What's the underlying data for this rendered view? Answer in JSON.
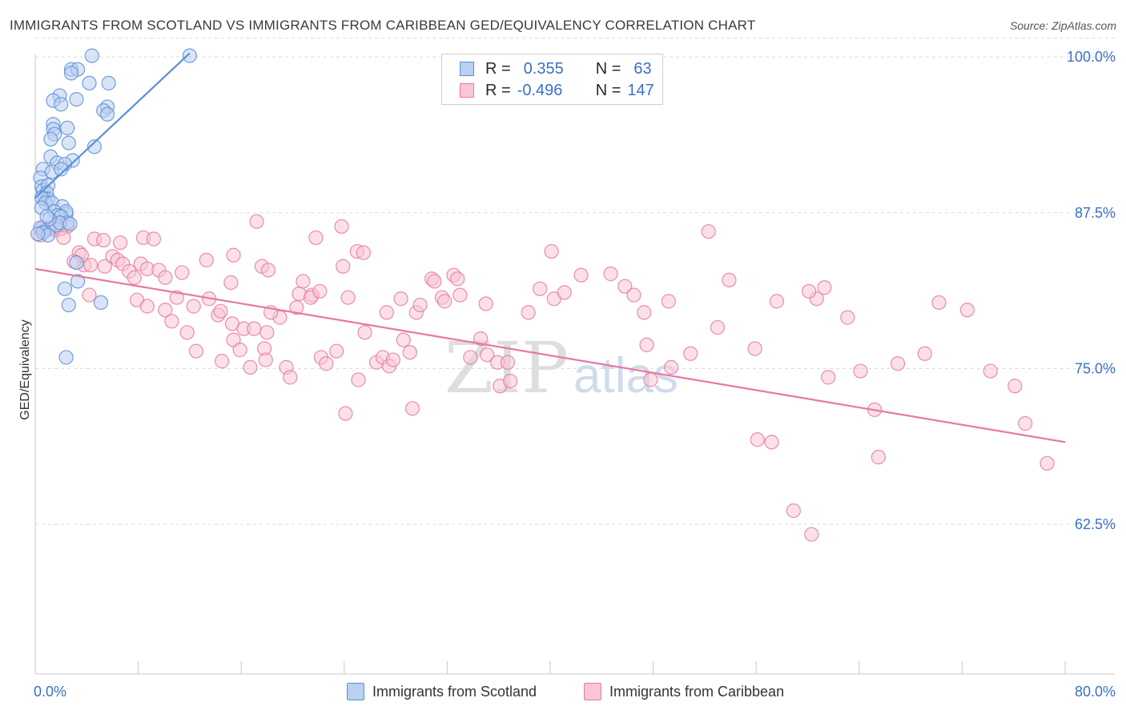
{
  "header": {
    "title": "IMMIGRANTS FROM SCOTLAND VS IMMIGRANTS FROM CARIBBEAN GED/EQUIVALENCY CORRELATION CHART",
    "source": "Source: ZipAtlas.com"
  },
  "stats_legend": {
    "rows": [
      {
        "r_label": "R =",
        "r_value": "0.355",
        "n_label": "N =",
        "n_value": "63",
        "color": "#5b8fd6",
        "fill": "#b9d0f0"
      },
      {
        "r_label": "R =",
        "r_value": "-0.496",
        "n_label": "N =",
        "n_value": "147",
        "color": "#e8799e",
        "fill": "#f8c6d6"
      }
    ]
  },
  "watermark": {
    "zip": "ZIP",
    "atlas": "atlas"
  },
  "chart_data": {
    "type": "scatter",
    "xlabel": "",
    "ylabel": "GED/Equivalency",
    "xlim": [
      0,
      80
    ],
    "ylim": [
      50.5,
      102
    ],
    "x_tick_labels": [
      "0.0%",
      "80.0%"
    ],
    "y_ticks": [
      62.5,
      75.0,
      87.5,
      100.0
    ],
    "y_tick_labels": [
      "62.5%",
      "75.0%",
      "87.5%",
      "100.0%"
    ],
    "x_minor_ticks": [
      0,
      8,
      16,
      24,
      32,
      40,
      48,
      56,
      64,
      72,
      80
    ],
    "grid": "horizontal dashed",
    "legend": "bottom-center",
    "series": [
      {
        "name": "Immigrants from Scotland",
        "color": "#5b8fd6",
        "fill": "#b9d0f0",
        "trend": {
          "x": [
            0.0,
            12.0
          ],
          "y": [
            88.7,
            100.3
          ]
        },
        "points": [
          [
            4.4,
            100.1
          ],
          [
            12.0,
            100.1
          ],
          [
            2.8,
            99.0
          ],
          [
            3.3,
            99.0
          ],
          [
            2.8,
            98.7
          ],
          [
            5.7,
            97.9
          ],
          [
            4.2,
            97.9
          ],
          [
            1.9,
            96.9
          ],
          [
            1.4,
            96.5
          ],
          [
            3.2,
            96.6
          ],
          [
            5.6,
            96.0
          ],
          [
            2.0,
            96.2
          ],
          [
            5.3,
            95.7
          ],
          [
            5.6,
            95.4
          ],
          [
            1.4,
            94.6
          ],
          [
            2.5,
            94.3
          ],
          [
            1.4,
            94.2
          ],
          [
            1.5,
            93.8
          ],
          [
            1.2,
            93.4
          ],
          [
            4.6,
            92.8
          ],
          [
            2.6,
            93.1
          ],
          [
            1.2,
            92.0
          ],
          [
            2.9,
            91.7
          ],
          [
            1.7,
            91.5
          ],
          [
            2.3,
            91.4
          ],
          [
            0.6,
            91.0
          ],
          [
            1.3,
            90.8
          ],
          [
            2.0,
            91.0
          ],
          [
            0.4,
            90.3
          ],
          [
            0.5,
            89.6
          ],
          [
            0.6,
            89.3
          ],
          [
            1.0,
            89.7
          ],
          [
            0.9,
            89.1
          ],
          [
            0.7,
            88.6
          ],
          [
            1.0,
            88.6
          ],
          [
            0.5,
            88.7
          ],
          [
            0.8,
            88.3
          ],
          [
            1.3,
            88.3
          ],
          [
            2.1,
            88.0
          ],
          [
            0.5,
            87.9
          ],
          [
            1.5,
            87.6
          ],
          [
            2.4,
            87.4
          ],
          [
            2.4,
            87.6
          ],
          [
            1.8,
            87.3
          ],
          [
            2.0,
            87.2
          ],
          [
            2.5,
            86.7
          ],
          [
            1.1,
            86.3
          ],
          [
            0.7,
            86.0
          ],
          [
            3.2,
            83.5
          ],
          [
            3.3,
            82.0
          ],
          [
            2.3,
            81.4
          ],
          [
            5.1,
            80.3
          ],
          [
            2.6,
            80.1
          ],
          [
            0.4,
            86.3
          ],
          [
            1.6,
            86.5
          ],
          [
            1.9,
            86.7
          ],
          [
            2.7,
            86.6
          ],
          [
            1.1,
            87.0
          ],
          [
            0.9,
            87.2
          ],
          [
            0.6,
            85.9
          ],
          [
            1.0,
            85.7
          ],
          [
            2.4,
            75.9
          ],
          [
            0.2,
            85.8
          ]
        ]
      },
      {
        "name": "Immigrants from Caribbean",
        "color": "#e8799e",
        "fill": "#f8c6d6",
        "trend": {
          "x": [
            0.0,
            80.0
          ],
          "y": [
            83.0,
            69.1
          ]
        },
        "points": [
          [
            0.4,
            85.7
          ],
          [
            0.6,
            86.3
          ],
          [
            0.8,
            86.2
          ],
          [
            1.2,
            86.2
          ],
          [
            1.6,
            86.1
          ],
          [
            2.0,
            86.2
          ],
          [
            2.5,
            86.4
          ],
          [
            2.2,
            85.5
          ],
          [
            3.4,
            84.3
          ],
          [
            4.6,
            85.4
          ],
          [
            3.8,
            83.3
          ],
          [
            4.3,
            83.3
          ],
          [
            3.6,
            84.1
          ],
          [
            5.3,
            85.3
          ],
          [
            5.4,
            83.2
          ],
          [
            6.0,
            84.0
          ],
          [
            6.4,
            83.7
          ],
          [
            6.6,
            85.1
          ],
          [
            6.8,
            83.4
          ],
          [
            7.3,
            82.8
          ],
          [
            7.7,
            82.3
          ],
          [
            8.2,
            83.4
          ],
          [
            8.4,
            85.5
          ],
          [
            8.7,
            83.0
          ],
          [
            9.6,
            82.9
          ],
          [
            10.1,
            82.3
          ],
          [
            3.0,
            83.6
          ],
          [
            4.2,
            80.9
          ],
          [
            7.9,
            80.5
          ],
          [
            8.7,
            80.0
          ],
          [
            10.1,
            79.7
          ],
          [
            11.0,
            80.7
          ],
          [
            10.6,
            78.8
          ],
          [
            11.4,
            82.7
          ],
          [
            12.3,
            80.0
          ],
          [
            11.8,
            77.9
          ],
          [
            12.5,
            76.4
          ],
          [
            13.3,
            83.7
          ],
          [
            13.5,
            80.6
          ],
          [
            14.2,
            79.3
          ],
          [
            14.4,
            79.6
          ],
          [
            15.2,
            81.9
          ],
          [
            15.3,
            78.6
          ],
          [
            15.4,
            77.3
          ],
          [
            14.5,
            75.6
          ],
          [
            15.9,
            76.5
          ],
          [
            16.2,
            78.2
          ],
          [
            17.0,
            78.2
          ],
          [
            17.8,
            76.6
          ],
          [
            17.6,
            83.2
          ],
          [
            18.1,
            82.9
          ],
          [
            19.0,
            79.1
          ],
          [
            18.0,
            77.9
          ],
          [
            17.9,
            75.7
          ],
          [
            19.5,
            75.1
          ],
          [
            19.8,
            74.3
          ],
          [
            20.3,
            79.9
          ],
          [
            20.5,
            81.0
          ],
          [
            20.8,
            82.0
          ],
          [
            21.5,
            80.9
          ],
          [
            21.4,
            80.7
          ],
          [
            22.1,
            81.2
          ],
          [
            22.2,
            75.9
          ],
          [
            22.6,
            75.4
          ],
          [
            23.4,
            76.4
          ],
          [
            23.9,
            83.2
          ],
          [
            23.8,
            86.4
          ],
          [
            24.1,
            71.4
          ],
          [
            24.3,
            80.7
          ],
          [
            25.0,
            84.4
          ],
          [
            25.5,
            84.3
          ],
          [
            25.6,
            77.9
          ],
          [
            25.1,
            74.1
          ],
          [
            26.5,
            75.5
          ],
          [
            27.0,
            75.9
          ],
          [
            27.3,
            79.5
          ],
          [
            27.5,
            75.2
          ],
          [
            27.8,
            75.7
          ],
          [
            28.4,
            80.6
          ],
          [
            28.6,
            77.3
          ],
          [
            29.1,
            76.3
          ],
          [
            29.3,
            71.8
          ],
          [
            29.6,
            79.5
          ],
          [
            29.9,
            80.1
          ],
          [
            30.8,
            82.2
          ],
          [
            31.0,
            82.0
          ],
          [
            31.6,
            80.7
          ],
          [
            31.8,
            80.4
          ],
          [
            32.5,
            82.5
          ],
          [
            32.8,
            82.2
          ],
          [
            33.0,
            80.9
          ],
          [
            33.8,
            75.9
          ],
          [
            34.6,
            77.4
          ],
          [
            35.1,
            76.1
          ],
          [
            35.0,
            80.2
          ],
          [
            35.9,
            75.5
          ],
          [
            36.1,
            73.6
          ],
          [
            36.7,
            75.5
          ],
          [
            36.9,
            74.0
          ],
          [
            38.3,
            79.5
          ],
          [
            39.2,
            81.4
          ],
          [
            40.1,
            84.4
          ],
          [
            40.3,
            80.6
          ],
          [
            41.1,
            81.1
          ],
          [
            42.4,
            82.5
          ],
          [
            44.7,
            82.6
          ],
          [
            45.8,
            81.6
          ],
          [
            46.5,
            80.9
          ],
          [
            47.3,
            79.5
          ],
          [
            47.5,
            76.9
          ],
          [
            47.8,
            74.1
          ],
          [
            49.2,
            80.4
          ],
          [
            49.4,
            75.1
          ],
          [
            50.9,
            76.2
          ],
          [
            52.3,
            86.0
          ],
          [
            53.0,
            78.3
          ],
          [
            53.9,
            82.1
          ],
          [
            55.9,
            76.6
          ],
          [
            56.1,
            69.3
          ],
          [
            57.2,
            69.1
          ],
          [
            57.6,
            80.4
          ],
          [
            58.9,
            63.6
          ],
          [
            60.3,
            61.7
          ],
          [
            60.7,
            80.6
          ],
          [
            61.3,
            81.5
          ],
          [
            61.6,
            74.3
          ],
          [
            63.1,
            79.1
          ],
          [
            64.1,
            74.8
          ],
          [
            65.2,
            71.7
          ],
          [
            65.5,
            67.9
          ],
          [
            67.0,
            75.4
          ],
          [
            69.1,
            76.2
          ],
          [
            70.2,
            80.3
          ],
          [
            72.4,
            79.7
          ],
          [
            74.2,
            74.8
          ],
          [
            76.1,
            73.6
          ],
          [
            76.9,
            70.6
          ],
          [
            78.6,
            67.4
          ],
          [
            17.2,
            86.8
          ],
          [
            15.4,
            84.1
          ],
          [
            9.2,
            85.4
          ],
          [
            18.3,
            79.5
          ],
          [
            21.8,
            85.5
          ],
          [
            16.7,
            75.1
          ],
          [
            60.1,
            81.2
          ]
        ]
      }
    ]
  },
  "bottom_legend": [
    {
      "label": "Immigrants from Scotland",
      "color": "#5b8fd6",
      "fill": "#b9d0f0"
    },
    {
      "label": "Immigrants from Caribbean",
      "color": "#e8799e",
      "fill": "#f8c6d6"
    }
  ]
}
